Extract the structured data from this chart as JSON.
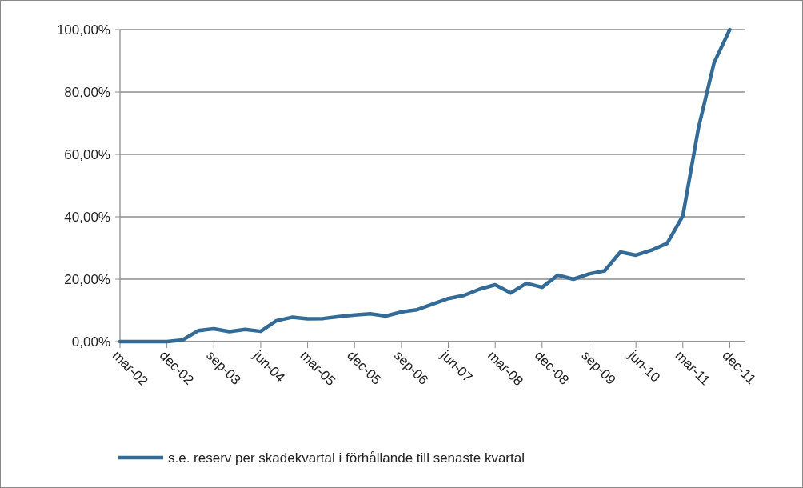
{
  "chart_data": {
    "type": "line",
    "categories": [
      "mar-02",
      null,
      null,
      "dec-02",
      null,
      null,
      "sep-03",
      null,
      null,
      "jun-04",
      null,
      null,
      "mar-05",
      null,
      null,
      "dec-05",
      null,
      null,
      "sep-06",
      null,
      null,
      "jun-07",
      null,
      null,
      "mar-08",
      null,
      null,
      "dec-08",
      null,
      null,
      "sep-09",
      null,
      null,
      "jun-10",
      null,
      null,
      "mar-11",
      null,
      null,
      "dec-11",
      null
    ],
    "series": [
      {
        "name": "s.e. reserv per skadekvartal i förhållande till senaste kvartal",
        "color": "#336b96",
        "values": [
          0,
          0,
          0,
          0,
          0.5,
          3.5,
          4.1,
          3.2,
          3.9,
          3.3,
          6.7,
          7.8,
          7.3,
          7.4,
          8.0,
          8.5,
          8.9,
          8.2,
          9.5,
          10.2,
          12.0,
          13.8,
          14.8,
          16.8,
          18.2,
          15.6,
          18.7,
          17.4,
          21.3,
          20.0,
          21.7,
          22.7,
          28.7,
          27.7,
          29.3,
          31.5,
          40.3,
          68.5,
          89.4,
          100,
          null
        ]
      }
    ],
    "ylim": [
      0,
      100
    ],
    "yticks": [
      {
        "value": 0,
        "label": "0,00%"
      },
      {
        "value": 20,
        "label": "20,00%"
      },
      {
        "value": 40,
        "label": "40,00%"
      },
      {
        "value": 60,
        "label": "60,00%"
      },
      {
        "value": 80,
        "label": "80,00%"
      },
      {
        "value": 100,
        "label": "100,00%"
      }
    ],
    "grid": "y",
    "legend": "bottom",
    "marker": "none",
    "line_style": "solid"
  }
}
